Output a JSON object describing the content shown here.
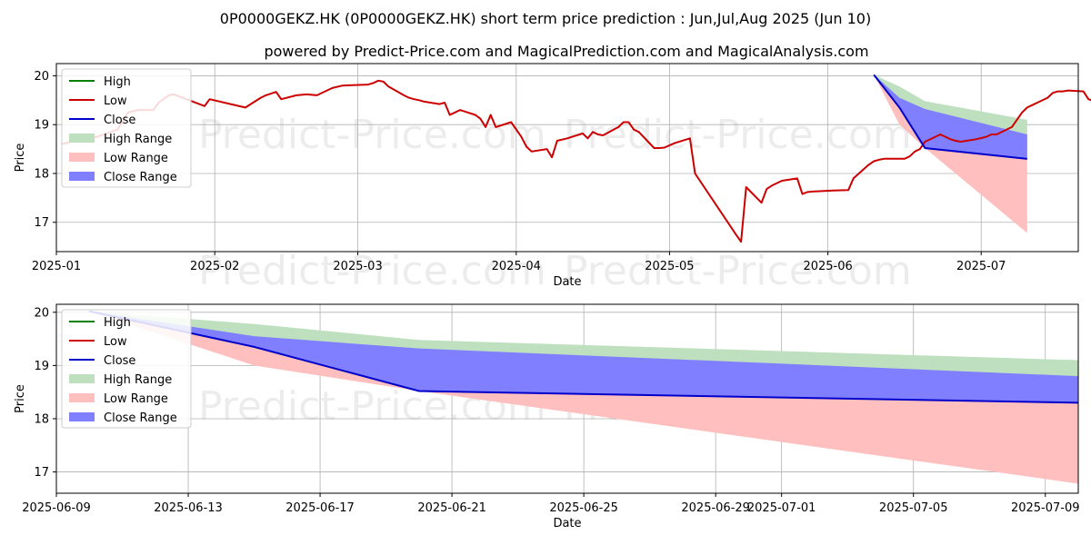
{
  "title": "0P0000GEKZ.HK (0P0000GEKZ.HK) short term price prediction : Jun,Jul,Aug 2025 (Jun 10)",
  "subtitle": "powered by Predict-Price.com and MagicalPrediction.com and MagicalAnalysis.com",
  "watermark": "Predict-Price.com",
  "colors": {
    "high": "#008000",
    "low": "#cc0000",
    "close": "#0000cc",
    "high_range": "#bfe0bf",
    "low_range": "#ffbfbf",
    "close_range": "#7f7fff",
    "grid": "#b0b0b0"
  },
  "legend": {
    "high": "High",
    "low": "Low",
    "close": "Close",
    "high_range": "High Range",
    "low_range": "Low Range",
    "close_range": "Close Range"
  },
  "chart_data": [
    {
      "type": "line",
      "xlabel": "Date",
      "ylabel": "Price",
      "grid": true,
      "legend_position": "top-left",
      "xlim": [
        "2025-01-01",
        "2025-07-20"
      ],
      "ylim": [
        16.4,
        20.25
      ],
      "x_ticks": [
        "2025-01",
        "2025-02",
        "2025-03",
        "2025-04",
        "2025-05",
        "2025-06",
        "2025-07"
      ],
      "x_tick_dates": [
        "2025-01-01",
        "2025-02-01",
        "2025-03-01",
        "2025-04-01",
        "2025-05-01",
        "2025-06-01",
        "2025-07-01"
      ],
      "y_ticks": [
        17,
        18,
        19,
        20
      ],
      "history": {
        "name": "Low",
        "points": [
          [
            "2025-01-02",
            18.6
          ],
          [
            "2025-01-06",
            18.7
          ],
          [
            "2025-01-09",
            18.75
          ],
          [
            "2025-01-13",
            18.9
          ],
          [
            "2025-01-15",
            19.25
          ],
          [
            "2025-01-17",
            19.3
          ],
          [
            "2025-01-20",
            19.3
          ],
          [
            "2025-01-21",
            19.45
          ],
          [
            "2025-01-23",
            19.6
          ],
          [
            "2025-01-24",
            19.62
          ],
          [
            "2025-01-27",
            19.5
          ],
          [
            "2025-01-30",
            19.38
          ],
          [
            "2025-01-31",
            19.52
          ],
          [
            "2025-02-07",
            19.35
          ],
          [
            "2025-02-10",
            19.55
          ],
          [
            "2025-02-11",
            19.6
          ],
          [
            "2025-02-13",
            19.67
          ],
          [
            "2025-02-14",
            19.52
          ],
          [
            "2025-02-17",
            19.6
          ],
          [
            "2025-02-19",
            19.62
          ],
          [
            "2025-02-21",
            19.6
          ],
          [
            "2025-02-24",
            19.75
          ],
          [
            "2025-02-26",
            19.8
          ],
          [
            "2025-03-03",
            19.82
          ],
          [
            "2025-03-04",
            19.85
          ],
          [
            "2025-03-05",
            19.9
          ],
          [
            "2025-03-06",
            19.88
          ],
          [
            "2025-03-07",
            19.78
          ],
          [
            "2025-03-10",
            19.6
          ],
          [
            "2025-03-11",
            19.55
          ],
          [
            "2025-03-12",
            19.52
          ],
          [
            "2025-03-13",
            19.5
          ],
          [
            "2025-03-14",
            19.47
          ],
          [
            "2025-03-17",
            19.42
          ],
          [
            "2025-03-18",
            19.45
          ],
          [
            "2025-03-19",
            19.2
          ],
          [
            "2025-03-20",
            19.25
          ],
          [
            "2025-03-21",
            19.3
          ],
          [
            "2025-03-24",
            19.2
          ],
          [
            "2025-03-25",
            19.12
          ],
          [
            "2025-03-26",
            18.95
          ],
          [
            "2025-03-27",
            19.2
          ],
          [
            "2025-03-28",
            18.95
          ],
          [
            "2025-03-31",
            19.05
          ],
          [
            "2025-04-02",
            18.75
          ],
          [
            "2025-04-03",
            18.55
          ],
          [
            "2025-04-04",
            18.45
          ],
          [
            "2025-04-07",
            18.5
          ],
          [
            "2025-04-08",
            18.33
          ],
          [
            "2025-04-09",
            18.67
          ],
          [
            "2025-04-11",
            18.72
          ],
          [
            "2025-04-14",
            18.82
          ],
          [
            "2025-04-15",
            18.72
          ],
          [
            "2025-04-16",
            18.85
          ],
          [
            "2025-04-17",
            18.8
          ],
          [
            "2025-04-18",
            18.78
          ],
          [
            "2025-04-21",
            18.95
          ],
          [
            "2025-04-22",
            19.05
          ],
          [
            "2025-04-23",
            19.05
          ],
          [
            "2025-04-24",
            18.9
          ],
          [
            "2025-04-25",
            18.85
          ],
          [
            "2025-04-28",
            18.52
          ],
          [
            "2025-04-29",
            18.52
          ],
          [
            "2025-04-30",
            18.53
          ],
          [
            "2025-05-02",
            18.62
          ],
          [
            "2025-05-05",
            18.72
          ],
          [
            "2025-05-06",
            18.0
          ],
          [
            "2025-05-14",
            16.75
          ],
          [
            "2025-05-15",
            16.6
          ],
          [
            "2025-05-16",
            17.72
          ],
          [
            "2025-05-19",
            17.4
          ],
          [
            "2025-05-20",
            17.68
          ],
          [
            "2025-05-21",
            17.75
          ],
          [
            "2025-05-23",
            17.85
          ],
          [
            "2025-05-26",
            17.9
          ],
          [
            "2025-05-27",
            17.58
          ],
          [
            "2025-05-28",
            17.62
          ],
          [
            "2025-05-29",
            17.63
          ],
          [
            "2025-06-02",
            17.65
          ],
          [
            "2025-06-05",
            17.66
          ],
          [
            "2025-06-06",
            17.9
          ],
          [
            "2025-06-09",
            18.18
          ],
          [
            "2025-06-10",
            18.25
          ],
          [
            "2025-06-11",
            18.28
          ],
          [
            "2025-06-12",
            18.3
          ],
          [
            "2025-06-13",
            18.3
          ],
          [
            "2025-06-16",
            18.3
          ],
          [
            "2025-06-17",
            18.35
          ],
          [
            "2025-06-18",
            18.45
          ],
          [
            "2025-06-19",
            18.5
          ],
          [
            "2025-06-20",
            18.65
          ],
          [
            "2025-06-23",
            18.8
          ],
          [
            "2025-06-24",
            18.75
          ],
          [
            "2025-06-25",
            18.7
          ],
          [
            "2025-06-26",
            18.67
          ],
          [
            "2025-06-27",
            18.65
          ],
          [
            "2025-06-30",
            18.7
          ],
          [
            "2025-07-02",
            18.75
          ],
          [
            "2025-07-03",
            18.8
          ],
          [
            "2025-07-04",
            18.8
          ],
          [
            "2025-07-07",
            18.95
          ],
          [
            "2025-07-08",
            19.1
          ],
          [
            "2025-07-09",
            19.25
          ],
          [
            "2025-07-10",
            19.35
          ],
          [
            "2025-07-11",
            19.4
          ],
          [
            "2025-07-14",
            19.55
          ],
          [
            "2025-07-15",
            19.65
          ],
          [
            "2025-07-16",
            19.68
          ],
          [
            "2025-07-17",
            19.68
          ],
          [
            "2025-07-18",
            19.7
          ],
          [
            "2025-07-21",
            19.68
          ],
          [
            "2025-07-22",
            19.52
          ],
          [
            "2025-07-24",
            19.45
          ],
          [
            "2025-07-25",
            19.4
          ],
          [
            "2025-07-28",
            19.4
          ],
          [
            "2025-07-29",
            19.4
          ],
          [
            "2025-07-30",
            19.42
          ],
          [
            "2025-07-31",
            19.68
          ],
          [
            "2025-08-01",
            19.6
          ],
          [
            "2025-08-04",
            19.65
          ],
          [
            "2025-08-05",
            19.62
          ],
          [
            "2025-08-06",
            19.65
          ],
          [
            "2025-08-07",
            19.68
          ],
          [
            "2025-08-08",
            19.68
          ],
          [
            "2025-08-11",
            19.75
          ],
          [
            "2025-08-12",
            19.8
          ],
          [
            "2025-08-13",
            19.82
          ],
          [
            "2025-08-14",
            19.78
          ],
          [
            "2025-08-15",
            19.92
          ],
          [
            "2025-08-18",
            19.92
          ],
          [
            "2025-08-20",
            19.95
          ],
          [
            "2025-08-21",
            19.95
          ],
          [
            "2025-08-22",
            19.96
          ],
          [
            "2025-08-25",
            20.02
          ]
        ]
      },
      "forecast": {
        "x": [
          "2025-06-10",
          "2025-06-15",
          "2025-06-20",
          "2025-07-10"
        ],
        "close": [
          20.02,
          19.35,
          18.52,
          18.3
        ],
        "high_range_top": [
          20.02,
          19.78,
          19.48,
          19.1
        ],
        "close_range_top": [
          20.02,
          19.55,
          19.32,
          18.8
        ],
        "low_range_bottom": [
          20.02,
          19.0,
          18.52,
          16.78
        ]
      }
    },
    {
      "type": "line",
      "xlabel": "Date",
      "ylabel": "Price",
      "grid": true,
      "legend_position": "top-left",
      "xlim": [
        "2025-06-09",
        "2025-07-10"
      ],
      "ylim": [
        16.6,
        20.15
      ],
      "x_ticks": [
        "2025-06-09",
        "2025-06-13",
        "2025-06-17",
        "2025-06-21",
        "2025-06-25",
        "2025-06-29",
        "2025-07-01",
        "2025-07-05",
        "2025-07-09"
      ],
      "y_ticks": [
        17,
        18,
        19,
        20
      ],
      "forecast": {
        "x": [
          "2025-06-10",
          "2025-06-15",
          "2025-06-20",
          "2025-07-10"
        ],
        "close": [
          20.02,
          19.35,
          18.52,
          18.3
        ],
        "high_range_top": [
          20.02,
          19.78,
          19.48,
          19.1
        ],
        "close_range_top": [
          20.02,
          19.55,
          19.32,
          18.8
        ],
        "low_range_bottom": [
          20.02,
          19.0,
          18.52,
          16.78
        ]
      }
    }
  ]
}
